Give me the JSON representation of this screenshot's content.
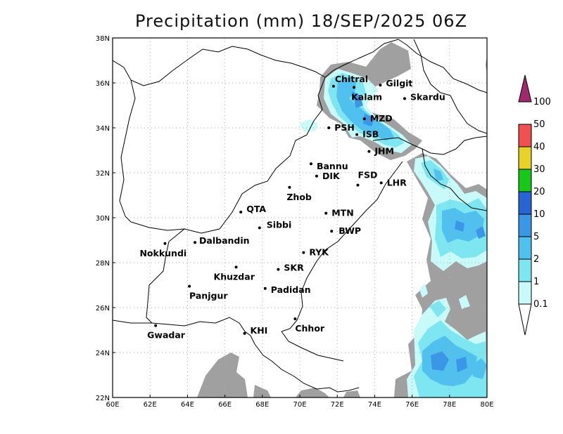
{
  "title": "Precipitation (mm) 18/SEP/2025 06Z",
  "map": {
    "lon_range": [
      60,
      80
    ],
    "lat_range": [
      22,
      38
    ],
    "lon_ticks": [
      "60E",
      "62E",
      "64E",
      "66E",
      "68E",
      "70E",
      "72E",
      "74E",
      "76E",
      "78E",
      "80E"
    ],
    "lat_ticks": [
      "22N",
      "24N",
      "26N",
      "28N",
      "30N",
      "32N",
      "34N",
      "36N",
      "38N"
    ],
    "grid": true
  },
  "cities": [
    {
      "name": "Chitral",
      "lon": 71.8,
      "lat": 35.85
    },
    {
      "name": "Gilgit",
      "lon": 74.3,
      "lat": 35.9
    },
    {
      "name": "Kalam",
      "lon": 72.9,
      "lat": 35.8
    },
    {
      "name": "Skardu",
      "lon": 75.6,
      "lat": 35.3
    },
    {
      "name": "MZD",
      "lon": 73.45,
      "lat": 34.4
    },
    {
      "name": "PSH",
      "lon": 71.55,
      "lat": 34.0
    },
    {
      "name": "ISB",
      "lon": 73.05,
      "lat": 33.7
    },
    {
      "name": "JHM",
      "lon": 73.7,
      "lat": 32.95
    },
    {
      "name": "Bannu",
      "lon": 70.6,
      "lat": 32.4
    },
    {
      "name": "DIK",
      "lon": 70.9,
      "lat": 31.85
    },
    {
      "name": "FSD",
      "lon": 73.1,
      "lat": 31.45
    },
    {
      "name": "LHR",
      "lon": 74.35,
      "lat": 31.55
    },
    {
      "name": "Zhob",
      "lon": 69.45,
      "lat": 31.35
    },
    {
      "name": "QTA",
      "lon": 66.85,
      "lat": 30.25
    },
    {
      "name": "MTN",
      "lon": 71.4,
      "lat": 30.2
    },
    {
      "name": "Sibbi",
      "lon": 67.85,
      "lat": 29.55
    },
    {
      "name": "BWP",
      "lon": 71.7,
      "lat": 29.4
    },
    {
      "name": "Nokkundi",
      "lon": 62.8,
      "lat": 28.85
    },
    {
      "name": "Dalbandin",
      "lon": 64.4,
      "lat": 28.9
    },
    {
      "name": "RYK",
      "lon": 70.2,
      "lat": 28.45
    },
    {
      "name": "Khuzdar",
      "lon": 66.6,
      "lat": 27.8
    },
    {
      "name": "SKR",
      "lon": 68.85,
      "lat": 27.7
    },
    {
      "name": "Panjgur",
      "lon": 64.1,
      "lat": 26.95
    },
    {
      "name": "Padidan",
      "lon": 68.15,
      "lat": 26.85
    },
    {
      "name": "Chhor",
      "lon": 69.75,
      "lat": 25.5
    },
    {
      "name": "KHI",
      "lon": 67.05,
      "lat": 24.85
    },
    {
      "name": "Gwadar",
      "lon": 62.3,
      "lat": 25.2
    }
  ],
  "colorbar": {
    "labels": [
      "0.1",
      "1",
      "2",
      "5",
      "10",
      "20",
      "30",
      "40",
      "50",
      "100"
    ],
    "colors": [
      "#a0a0a0",
      "#c8fafa",
      "#7ee6f0",
      "#50c0ee",
      "#3c96e6",
      "#2864d2",
      "#18c818",
      "#e6d228",
      "#f05050",
      "#a0286e"
    ]
  }
}
